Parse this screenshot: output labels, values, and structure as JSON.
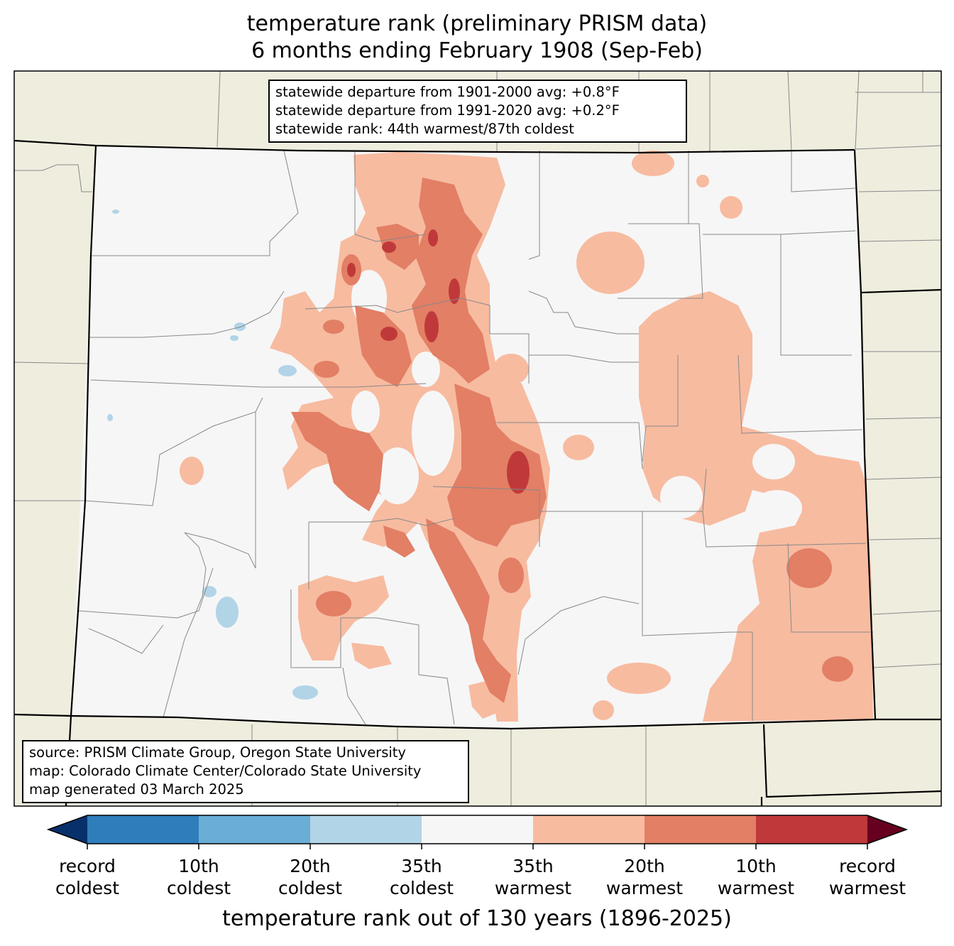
{
  "title": {
    "line1": "temperature rank (preliminary PRISM data)",
    "line2": "6 months ending February 1908 (Sep-Feb)"
  },
  "stats": {
    "departure_1901_2000": "statewide departure from 1901-2000 avg: +0.8°F",
    "departure_1991_2020": "statewide departure from 1991-2020 avg: +0.2°F",
    "rank": "statewide rank: 44th warmest/87th coldest"
  },
  "credits": {
    "source": "source: PRISM Climate Group, Oregon State University",
    "map": "map: Colorado Climate Center/Colorado State University",
    "generated": "map generated 03 March 2025"
  },
  "colorbar": {
    "label": "temperature rank out of 130 years (1896-2025)",
    "ticks": [
      {
        "line1": "record",
        "line2": "coldest"
      },
      {
        "line1": "10th",
        "line2": "coldest"
      },
      {
        "line1": "20th",
        "line2": "coldest"
      },
      {
        "line1": "35th",
        "line2": "coldest"
      },
      {
        "line1": "35th",
        "line2": "warmest"
      },
      {
        "line1": "20th",
        "line2": "warmest"
      },
      {
        "line1": "10th",
        "line2": "warmest"
      },
      {
        "line1": "record",
        "line2": "warmest"
      }
    ],
    "colors": [
      "#08306b",
      "#2f7dbb",
      "#6aadd5",
      "#b2d4e7",
      "#f6f6f6",
      "#f7bba0",
      "#e27f65",
      "#c0393a",
      "#67001f"
    ]
  },
  "map_colors": {
    "surrounding_land": "#efedde",
    "state_fill": "#f6f6f6",
    "county_lines": "#888888",
    "border_lines": "#000000"
  }
}
